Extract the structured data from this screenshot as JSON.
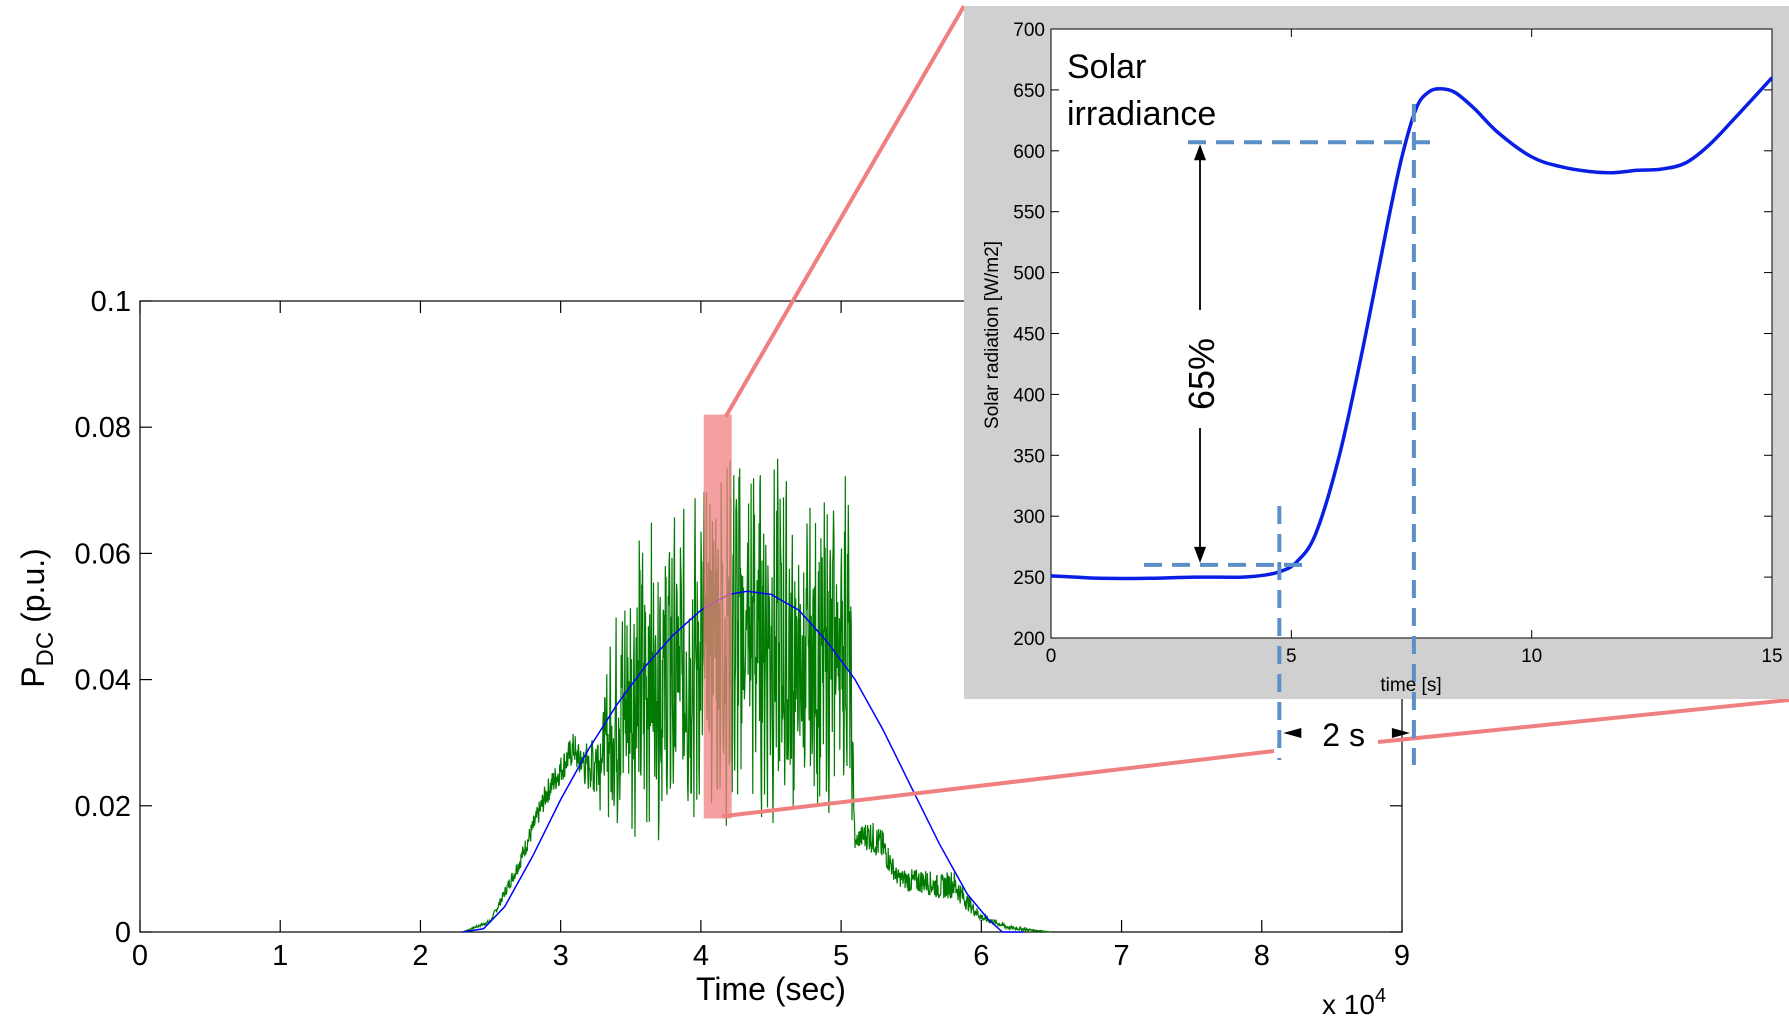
{
  "chart_data": [
    {
      "type": "line",
      "xlabel": "Time (sec)",
      "ylabel": "P",
      "ylabel_sub": "DC",
      "ylabel_suffix": " (p.u.)",
      "x_multiplier": "x 10",
      "x_multiplier_exp": "4",
      "xlim": [
        0,
        9
      ],
      "ylim": [
        0,
        0.1
      ],
      "xticks": [
        0,
        1,
        2,
        3,
        4,
        5,
        6,
        7,
        8,
        9
      ],
      "yticks": [
        0,
        0.02,
        0.04,
        0.06,
        0.08,
        0.1
      ],
      "xtick_labels": [
        "0",
        "1",
        "2",
        "3",
        "4",
        "5",
        "6",
        "7",
        "8",
        "9"
      ],
      "ytick_labels": [
        "0",
        "0.02",
        "0.04",
        "0.06",
        "0.08",
        "0.1"
      ],
      "grid": false,
      "series": [
        {
          "color": "#0000ff",
          "style": "clear-sky envelope",
          "x": [
            2.3,
            2.45,
            2.6,
            2.8,
            3.0,
            3.2,
            3.4,
            3.6,
            3.8,
            4.0,
            4.2,
            4.33,
            4.5,
            4.7,
            4.9,
            5.1,
            5.3,
            5.5,
            5.7,
            5.9,
            6.05,
            6.15,
            6.3
          ],
          "y": [
            0,
            0.0005,
            0.004,
            0.012,
            0.021,
            0.029,
            0.036,
            0.042,
            0.047,
            0.051,
            0.0535,
            0.054,
            0.0535,
            0.051,
            0.046,
            0.04,
            0.032,
            0.023,
            0.014,
            0.006,
            0.002,
            0,
            0
          ]
        },
        {
          "color": "#007a00",
          "style": "measured irradiance power",
          "x": [
            2.3,
            2.5,
            2.7,
            2.9,
            3.1,
            3.2,
            3.3,
            3.4,
            3.5,
            3.6,
            3.7,
            3.8,
            3.9,
            4.0,
            4.1,
            4.2,
            4.3,
            4.4,
            4.5,
            4.6,
            4.7,
            4.8,
            4.9,
            5.0,
            5.05,
            5.1,
            5.2,
            5.3,
            5.4,
            5.5,
            5.6,
            5.7,
            5.8,
            5.9,
            6.0,
            6.2,
            6.5
          ],
          "y_low": [
            0,
            0.001,
            0.008,
            0.018,
            0.024,
            0.022,
            0.018,
            0.015,
            0.014,
            0.014,
            0.014,
            0.014,
            0.015,
            0.015,
            0.016,
            0.016,
            0.017,
            0.016,
            0.016,
            0.015,
            0.015,
            0.016,
            0.018,
            0.02,
            0.022,
            0.012,
            0.01,
            0.008,
            0.006,
            0.004,
            0.004,
            0.003,
            0.003,
            0.002,
            0.001,
            0,
            0
          ],
          "y_high": [
            0,
            0.002,
            0.012,
            0.024,
            0.032,
            0.03,
            0.04,
            0.052,
            0.062,
            0.066,
            0.069,
            0.068,
            0.069,
            0.072,
            0.08,
            0.08,
            0.078,
            0.078,
            0.078,
            0.074,
            0.066,
            0.069,
            0.069,
            0.073,
            0.078,
            0.016,
            0.018,
            0.016,
            0.01,
            0.01,
            0.01,
            0.009,
            0.01,
            0.006,
            0.003,
            0.001,
            0
          ]
        }
      ],
      "highlight": {
        "x_range": [
          4.02,
          4.22
        ],
        "y_range": [
          0.018,
          0.082
        ],
        "color": "#f08080"
      }
    },
    {
      "type": "line",
      "title_lines": [
        "Solar",
        "irradiance"
      ],
      "xlabel": "time [s]",
      "ylabel": "Solar radiation [W/m2]",
      "xlim": [
        0,
        15
      ],
      "ylim": [
        200,
        700
      ],
      "xticks": [
        0,
        5,
        10,
        15
      ],
      "yticks": [
        200,
        250,
        300,
        350,
        400,
        450,
        500,
        550,
        600,
        650,
        700
      ],
      "xtick_labels": [
        "0",
        "5",
        "10",
        "15"
      ],
      "ytick_labels": [
        "200",
        "250",
        "300",
        "350",
        "400",
        "450",
        "500",
        "550",
        "600",
        "650",
        "700"
      ],
      "grid": false,
      "series": [
        {
          "color": "#0a1fe6",
          "x": [
            0,
            0.5,
            1,
            2,
            3,
            4,
            4.5,
            4.8,
            5.1,
            5.5,
            6.0,
            6.5,
            7.0,
            7.3,
            7.6,
            7.85,
            8.1,
            8.4,
            8.8,
            9.3,
            10,
            10.6,
            11.2,
            11.7,
            12.2,
            12.7,
            13.2,
            13.7,
            14.3,
            15
          ],
          "y": [
            251,
            250,
            249,
            249,
            250,
            250,
            252,
            255,
            262,
            285,
            350,
            440,
            540,
            595,
            635,
            648,
            651,
            648,
            635,
            615,
            595,
            587,
            583,
            582,
            584,
            585,
            590,
            605,
            630,
            660
          ]
        }
      ],
      "annotations": {
        "percent_label": "65%",
        "delta_label": "2 s",
        "low_level": 260,
        "high_level": 607,
        "start_time": 4.75,
        "end_time": 7.55,
        "arrow_time": 3.1
      }
    }
  ]
}
